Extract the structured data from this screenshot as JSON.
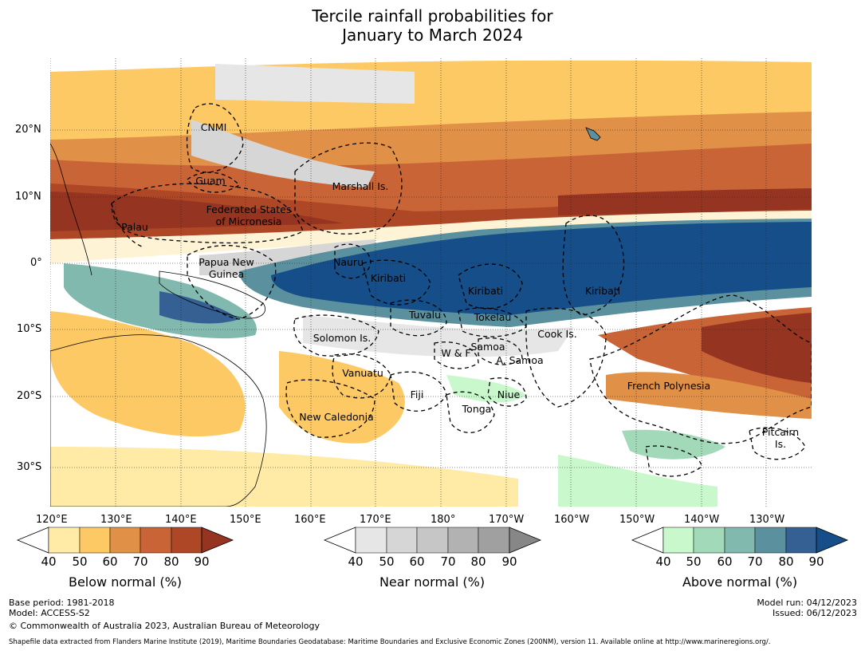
{
  "title_line1": "Tercile rainfall probabilities for",
  "title_line2": "January to March 2024",
  "lat_labels": [
    "20°N",
    "10°N",
    "0°",
    "10°S",
    "20°S",
    "30°S"
  ],
  "lon_labels": [
    "120°E",
    "130°E",
    "140°E",
    "150°E",
    "160°E",
    "170°E",
    "180°",
    "170°W",
    "160°W",
    "150°W",
    "140°W",
    "130°W"
  ],
  "regions": [
    "CNMI",
    "Guam",
    "Marshall Is.",
    "Federated States",
    "of Micronesia",
    "Palau",
    "Papua New",
    "Guinea",
    "Nauru",
    "Kiribati",
    "Kiribati",
    "Kiribati",
    "Tuvalu",
    "Tokelau",
    "Cook Is.",
    "Solomon Is.",
    "W & F",
    "Samoa",
    "A. Samoa",
    "Vanuatu",
    "Fiji",
    "Niue",
    "Tonga",
    "French Polynesia",
    "New Caledonia",
    "Pitcairn",
    "Is."
  ],
  "colorbars": [
    {
      "title": "Below normal (%)",
      "ticks": [
        "40",
        "50",
        "60",
        "70",
        "80",
        "90"
      ],
      "colors": [
        "#ffeaa6",
        "#fdc965",
        "#e09047",
        "#c96436",
        "#ae4726",
        "#953420"
      ]
    },
    {
      "title": "Near normal (%)",
      "ticks": [
        "40",
        "50",
        "60",
        "70",
        "80",
        "90"
      ],
      "colors": [
        "#e6e6e6",
        "#d6d6d6",
        "#c6c6c6",
        "#b2b2b2",
        "#a0a0a0",
        "#878787"
      ]
    },
    {
      "title": "Above normal (%)",
      "ticks": [
        "40",
        "50",
        "60",
        "70",
        "80",
        "90"
      ],
      "colors": [
        "#c8f8cc",
        "#a2dab9",
        "#82b9af",
        "#5b919f",
        "#346094",
        "#154e88"
      ]
    }
  ],
  "footer": {
    "base_period": "Base period: 1981-2018",
    "model": "Model: ACCESS-S2",
    "copyright": "© Commonwealth of Australia 2023, Australian Bureau of Meteorology",
    "model_run": "Model run: 04/12/2023",
    "issued": "Issued: 06/12/2023",
    "shapefile": "Shapefile data extracted from Flanders Marine Institute (2019), Maritime Boundaries Geodatabase: Maritime Boundaries and Exclusive Economic Zones (200NM), version 11. Available online at http://www.marineregions.org/."
  }
}
